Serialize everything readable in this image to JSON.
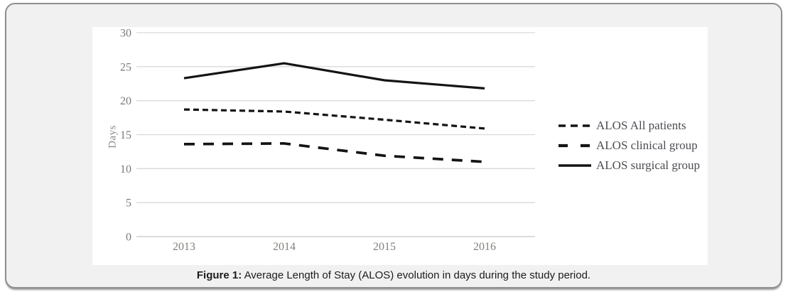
{
  "figure": {
    "caption_label": "Figure 1:",
    "caption_text": " Average Length of Stay (ALOS) evolution in days during the study period."
  },
  "chart_data": {
    "type": "line",
    "title": "",
    "xlabel": "",
    "ylabel": "Days",
    "categories": [
      "2013",
      "2014",
      "2015",
      "2016"
    ],
    "series": [
      {
        "name": "ALOS All patients",
        "values": [
          18.7,
          18.4,
          17.2,
          15.9
        ],
        "line_style": "dashed-small",
        "color": "#141414"
      },
      {
        "name": "ALOS clinical group",
        "values": [
          13.6,
          13.7,
          11.9,
          11.0
        ],
        "line_style": "dashed-large",
        "color": "#141414"
      },
      {
        "name": "ALOS surgical group",
        "values": [
          23.3,
          25.5,
          23.0,
          21.8
        ],
        "line_style": "solid",
        "color": "#141414"
      }
    ],
    "ylim": [
      0,
      30
    ],
    "yticks": [
      0,
      5,
      10,
      15,
      20,
      25,
      30
    ],
    "grid": true,
    "legend_position": "right"
  },
  "colors": {
    "panel_background": "#ffffff",
    "card_background": "#f1f1f1",
    "card_border": "#8f8f8f",
    "gridline": "#d9d9d9",
    "zero_line": "#c6c6c6",
    "tick_label": "#7a7a7a",
    "category_label": "#85817c",
    "legend_text": "#4c4c52",
    "line": "#141414"
  }
}
